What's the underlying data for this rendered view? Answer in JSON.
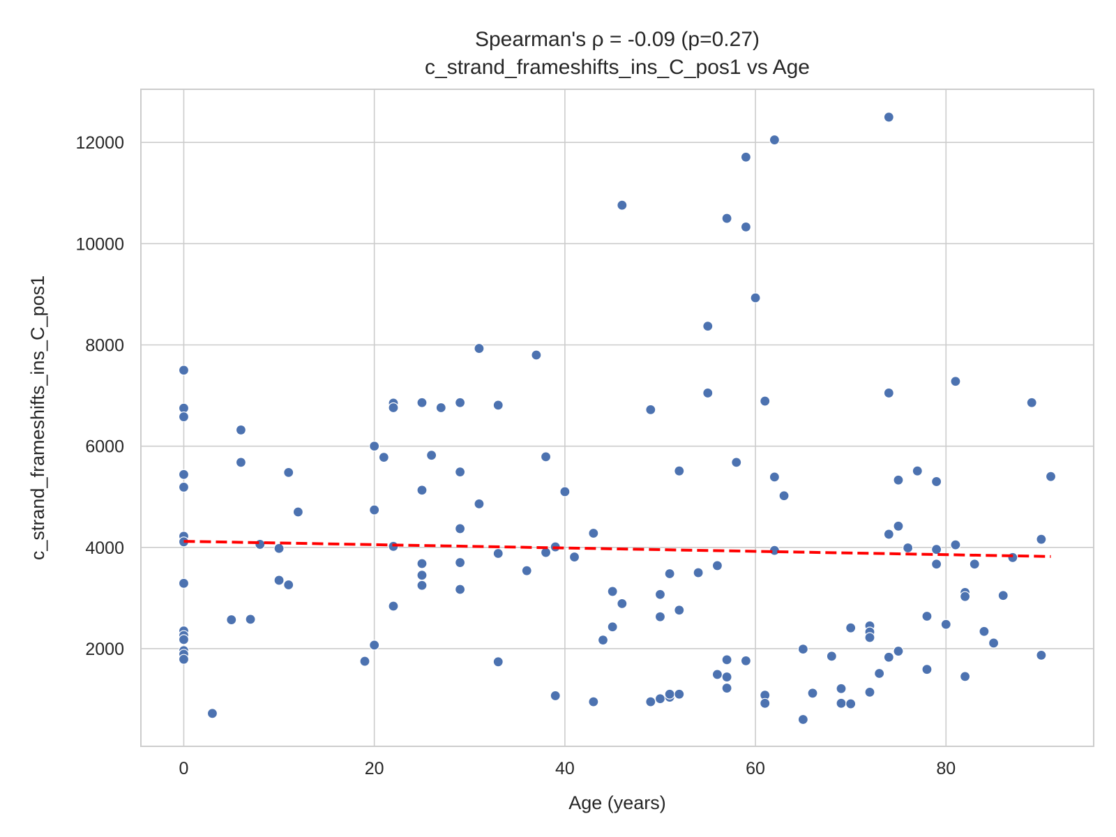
{
  "chart_data": {
    "type": "scatter",
    "title_line1": "Spearman's ρ = -0.09 (p=0.27)",
    "title_line2": "c_strand_frameshifts_ins_C_pos1 vs Age",
    "xlabel": "Age (years)",
    "ylabel": "c_strand_frameshifts_ins_C_pos1",
    "xlim": [
      -4.5,
      95.5
    ],
    "ylim": [
      70,
      13050
    ],
    "xticks": [
      0,
      20,
      40,
      60,
      80
    ],
    "yticks": [
      2000,
      4000,
      6000,
      8000,
      10000,
      12000
    ],
    "grid": true,
    "colors": {
      "points": "#4c72b0",
      "trend": "#ff0000"
    },
    "trend_line": {
      "x": [
        0,
        91
      ],
      "y": [
        4120,
        3820
      ]
    },
    "points": [
      [
        0,
        7500
      ],
      [
        0,
        6750
      ],
      [
        0,
        6580
      ],
      [
        0,
        5440
      ],
      [
        0,
        5190
      ],
      [
        0,
        4220
      ],
      [
        0,
        4110
      ],
      [
        0,
        3290
      ],
      [
        0,
        2350
      ],
      [
        0,
        2260
      ],
      [
        0,
        2180
      ],
      [
        0,
        1960
      ],
      [
        0,
        1890
      ],
      [
        0,
        1790
      ],
      [
        3,
        720
      ],
      [
        5,
        2570
      ],
      [
        6,
        6320
      ],
      [
        6,
        5680
      ],
      [
        7,
        2580
      ],
      [
        8,
        4060
      ],
      [
        10,
        3980
      ],
      [
        10,
        3350
      ],
      [
        11,
        5480
      ],
      [
        11,
        3260
      ],
      [
        12,
        4700
      ],
      [
        19,
        1750
      ],
      [
        20,
        6000
      ],
      [
        20,
        4740
      ],
      [
        20,
        2070
      ],
      [
        21,
        5780
      ],
      [
        22,
        6850
      ],
      [
        22,
        6760
      ],
      [
        22,
        4020
      ],
      [
        22,
        2840
      ],
      [
        25,
        6860
      ],
      [
        25,
        5130
      ],
      [
        25,
        3680
      ],
      [
        25,
        3450
      ],
      [
        25,
        3250
      ],
      [
        26,
        5820
      ],
      [
        27,
        6760
      ],
      [
        29,
        6860
      ],
      [
        29,
        5490
      ],
      [
        29,
        4370
      ],
      [
        29,
        3700
      ],
      [
        29,
        3170
      ],
      [
        31,
        7930
      ],
      [
        31,
        4860
      ],
      [
        33,
        6810
      ],
      [
        33,
        3880
      ],
      [
        33,
        1740
      ],
      [
        36,
        3540
      ],
      [
        37,
        7800
      ],
      [
        38,
        5790
      ],
      [
        38,
        3900
      ],
      [
        39,
        4010
      ],
      [
        39,
        1070
      ],
      [
        40,
        5100
      ],
      [
        41,
        3810
      ],
      [
        43,
        4280
      ],
      [
        43,
        950
      ],
      [
        44,
        2170
      ],
      [
        45,
        3130
      ],
      [
        45,
        2430
      ],
      [
        46,
        10760
      ],
      [
        46,
        2890
      ],
      [
        49,
        6720
      ],
      [
        49,
        950
      ],
      [
        50,
        3070
      ],
      [
        50,
        2630
      ],
      [
        50,
        1010
      ],
      [
        51,
        3480
      ],
      [
        51,
        1040
      ],
      [
        51,
        1100
      ],
      [
        52,
        5510
      ],
      [
        52,
        2760
      ],
      [
        52,
        1100
      ],
      [
        54,
        3500
      ],
      [
        55,
        8370
      ],
      [
        55,
        7050
      ],
      [
        56,
        3640
      ],
      [
        56,
        1490
      ],
      [
        57,
        10500
      ],
      [
        57,
        1780
      ],
      [
        57,
        1440
      ],
      [
        57,
        1220
      ],
      [
        58,
        5680
      ],
      [
        59,
        11710
      ],
      [
        59,
        10330
      ],
      [
        59,
        1760
      ],
      [
        60,
        8930
      ],
      [
        61,
        6890
      ],
      [
        61,
        1080
      ],
      [
        61,
        920
      ],
      [
        62,
        12050
      ],
      [
        62,
        5390
      ],
      [
        62,
        3940
      ],
      [
        63,
        5020
      ],
      [
        65,
        1990
      ],
      [
        65,
        600
      ],
      [
        66,
        1120
      ],
      [
        68,
        1850
      ],
      [
        69,
        1210
      ],
      [
        69,
        920
      ],
      [
        70,
        2410
      ],
      [
        70,
        910
      ],
      [
        72,
        2450
      ],
      [
        72,
        2330
      ],
      [
        72,
        2220
      ],
      [
        72,
        1140
      ],
      [
        73,
        1510
      ],
      [
        74,
        12500
      ],
      [
        74,
        7050
      ],
      [
        74,
        4260
      ],
      [
        74,
        1830
      ],
      [
        75,
        5330
      ],
      [
        75,
        4420
      ],
      [
        75,
        1950
      ],
      [
        76,
        3990
      ],
      [
        77,
        5510
      ],
      [
        78,
        2640
      ],
      [
        78,
        1590
      ],
      [
        79,
        5300
      ],
      [
        79,
        3960
      ],
      [
        79,
        3670
      ],
      [
        80,
        2480
      ],
      [
        81,
        7280
      ],
      [
        81,
        4050
      ],
      [
        82,
        3110
      ],
      [
        82,
        3030
      ],
      [
        82,
        1450
      ],
      [
        83,
        3670
      ],
      [
        84,
        2340
      ],
      [
        85,
        2110
      ],
      [
        86,
        3050
      ],
      [
        87,
        3800
      ],
      [
        89,
        6860
      ],
      [
        90,
        4160
      ],
      [
        90,
        1870
      ],
      [
        91,
        5400
      ]
    ]
  }
}
